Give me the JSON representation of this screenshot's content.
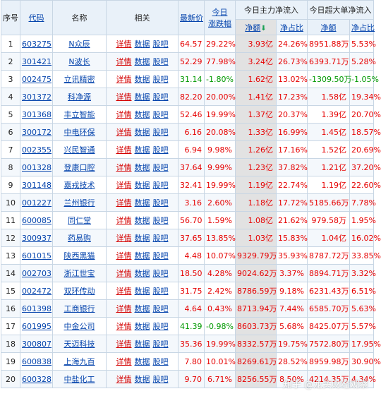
{
  "headers": {
    "seq": "序号",
    "code": "代码",
    "name": "名称",
    "related": "相关",
    "price": "最新价",
    "change_l1": "今日",
    "change_l2": "涨跌幅",
    "main_flow": "今日主力净流入",
    "super_flow": "今日超大单净流入",
    "net_amount": "净额",
    "net_ratio": "净占比",
    "sort_arrow": "⬇"
  },
  "links": {
    "detail": "详情",
    "data": "数据",
    "forum": "股吧"
  },
  "rows": [
    {
      "seq": "1",
      "code": "603275",
      "name": "N众辰",
      "price": "64.57",
      "change": "29.22%",
      "main_net": "3.93亿",
      "main_ratio": "24.26%",
      "super_net": "8951.88万",
      "super_ratio": "5.53%"
    },
    {
      "seq": "2",
      "code": "301421",
      "name": "N波长",
      "price": "52.29",
      "change": "77.98%",
      "main_net": "3.24亿",
      "main_ratio": "26.73%",
      "super_net": "6393.71万",
      "super_ratio": "5.28%"
    },
    {
      "seq": "3",
      "code": "002475",
      "name": "立讯精密",
      "price": "31.14",
      "change": "-1.80%",
      "main_net": "1.62亿",
      "main_ratio": "13.02%",
      "super_net": "-1309.50万",
      "super_ratio": "-1.05%"
    },
    {
      "seq": "4",
      "code": "301372",
      "name": "科净源",
      "price": "82.20",
      "change": "20.00%",
      "main_net": "1.41亿",
      "main_ratio": "17.23%",
      "super_net": "1.58亿",
      "super_ratio": "19.34%"
    },
    {
      "seq": "5",
      "code": "301368",
      "name": "丰立智能",
      "price": "52.46",
      "change": "19.99%",
      "main_net": "1.37亿",
      "main_ratio": "20.37%",
      "super_net": "1.39亿",
      "super_ratio": "20.70%"
    },
    {
      "seq": "6",
      "code": "300172",
      "name": "中电环保",
      "price": "6.16",
      "change": "20.08%",
      "main_net": "1.33亿",
      "main_ratio": "16.99%",
      "super_net": "1.45亿",
      "super_ratio": "18.57%"
    },
    {
      "seq": "7",
      "code": "002355",
      "name": "兴民智通",
      "price": "6.94",
      "change": "9.98%",
      "main_net": "1.26亿",
      "main_ratio": "17.16%",
      "super_net": "1.52亿",
      "super_ratio": "20.69%"
    },
    {
      "seq": "8",
      "code": "001328",
      "name": "登康口腔",
      "price": "37.64",
      "change": "9.99%",
      "main_net": "1.23亿",
      "main_ratio": "37.82%",
      "super_net": "1.21亿",
      "super_ratio": "37.20%"
    },
    {
      "seq": "9",
      "code": "301148",
      "name": "嘉戎技术",
      "price": "32.41",
      "change": "19.99%",
      "main_net": "1.19亿",
      "main_ratio": "22.74%",
      "super_net": "1.19亿",
      "super_ratio": "22.60%"
    },
    {
      "seq": "10",
      "code": "001227",
      "name": "兰州银行",
      "price": "3.16",
      "change": "2.60%",
      "main_net": "1.18亿",
      "main_ratio": "17.72%",
      "super_net": "5185.66万",
      "super_ratio": "7.78%"
    },
    {
      "seq": "11",
      "code": "600085",
      "name": "同仁堂",
      "price": "56.70",
      "change": "1.59%",
      "main_net": "1.08亿",
      "main_ratio": "21.62%",
      "super_net": "979.58万",
      "super_ratio": "1.95%"
    },
    {
      "seq": "12",
      "code": "300937",
      "name": "药易购",
      "price": "37.65",
      "change": "13.85%",
      "main_net": "1.03亿",
      "main_ratio": "15.83%",
      "super_net": "1.04亿",
      "super_ratio": "16.02%"
    },
    {
      "seq": "13",
      "code": "601015",
      "name": "陕西黑猫",
      "price": "4.48",
      "change": "10.07%",
      "main_net": "9329.79万",
      "main_ratio": "35.93%",
      "super_net": "8787.72万",
      "super_ratio": "33.85%"
    },
    {
      "seq": "14",
      "code": "002703",
      "name": "浙江世宝",
      "price": "18.50",
      "change": "4.28%",
      "main_net": "9024.62万",
      "main_ratio": "3.37%",
      "super_net": "8894.71万",
      "super_ratio": "3.32%"
    },
    {
      "seq": "15",
      "code": "002472",
      "name": "双环传动",
      "price": "31.75",
      "change": "2.42%",
      "main_net": "8786.59万",
      "main_ratio": "9.18%",
      "super_net": "6231.43万",
      "super_ratio": "6.51%"
    },
    {
      "seq": "16",
      "code": "601398",
      "name": "工商银行",
      "price": "4.64",
      "change": "0.43%",
      "main_net": "8713.94万",
      "main_ratio": "7.44%",
      "super_net": "6585.70万",
      "super_ratio": "5.63%"
    },
    {
      "seq": "17",
      "code": "601995",
      "name": "中金公司",
      "price": "41.39",
      "change": "-0.98%",
      "main_net": "8603.73万",
      "main_ratio": "5.68%",
      "super_net": "8425.07万",
      "super_ratio": "5.57%"
    },
    {
      "seq": "18",
      "code": "300807",
      "name": "天迈科技",
      "price": "35.36",
      "change": "19.99%",
      "main_net": "8332.57万",
      "main_ratio": "19.75%",
      "super_net": "7572.80万",
      "super_ratio": "17.95%"
    },
    {
      "seq": "19",
      "code": "600838",
      "name": "上海九百",
      "price": "7.80",
      "change": "10.01%",
      "main_net": "8269.61万",
      "main_ratio": "28.52%",
      "super_net": "8959.98万",
      "super_ratio": "30.90%"
    },
    {
      "seq": "20",
      "code": "600328",
      "name": "中盐化工",
      "price": "9.70",
      "change": "6.71%",
      "main_net": "8256.55万",
      "main_ratio": "8.50%",
      "super_net": "4214.35万",
      "super_ratio": "4.34%"
    }
  ],
  "watermark": "知乎 @龙头财经观察",
  "colors": {
    "up": "#e60000",
    "down": "#009900",
    "link": "#0645ad",
    "header_bg": "#e9f1f9",
    "sorted_col_bg": "#e2e2e2"
  }
}
